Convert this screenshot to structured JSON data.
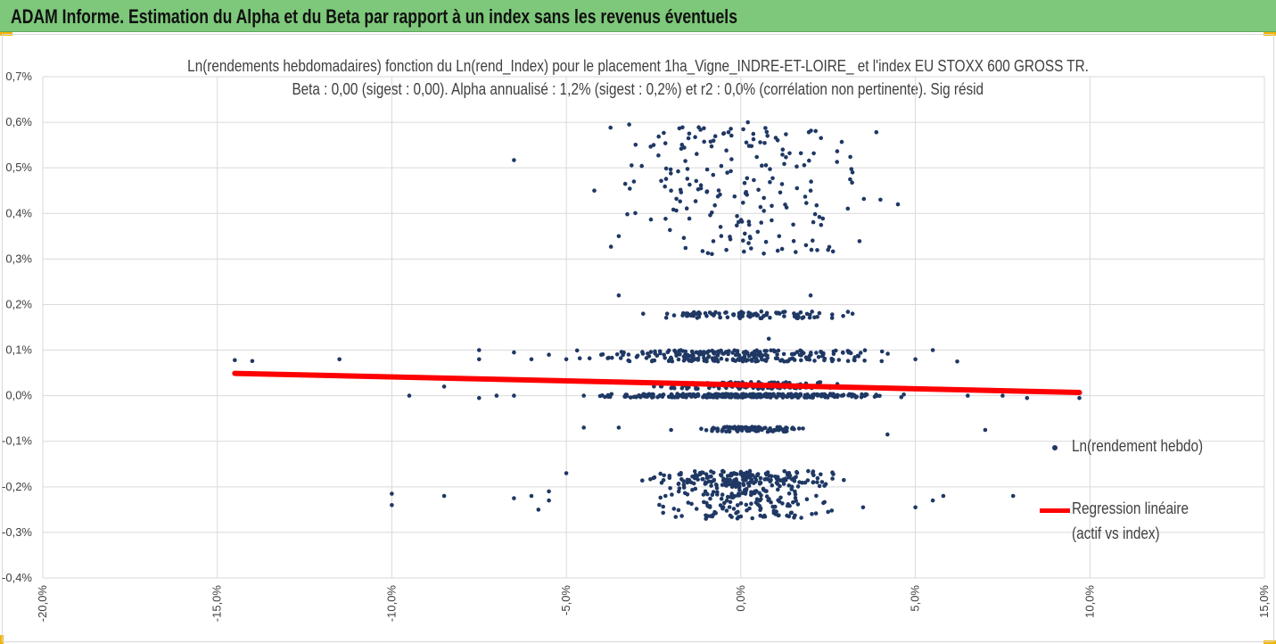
{
  "banner": {
    "title": "ADAM Informe. Estimation du Alpha et du Beta par rapport à un index sans les revenus éventuels",
    "background": "#7dc87a",
    "accent": "#f2b400"
  },
  "chart_data": {
    "type": "scatter",
    "title": "Ln(rendements hebdomadaires) fonction du Ln(rend_Index) pour le placement 1ha_Vigne_INDRE-ET-LOIRE_ et l'index EU STOXX 600 GROSS TR.",
    "subtitle": "Beta : 0,00 (sigest : 0,00). Alpha annualisé : 1,2% (sigest : 0,2%) et r2 : 0,0% (corrélation non pertinente). Sig résid",
    "xlabel": "",
    "ylabel": "",
    "xlim": [
      -20,
      15
    ],
    "ylim": [
      -0.4,
      0.7
    ],
    "x_ticks": [
      "-20,0%",
      "-15,0%",
      "-10,0%",
      "-5,0%",
      "0,0%",
      "5,0%",
      "10,0%",
      "15,0%"
    ],
    "y_ticks": [
      "0,7%",
      "0,6%",
      "0,5%",
      "0,4%",
      "0,3%",
      "0,2%",
      "0,1%",
      "0,0%",
      "-0,1%",
      "-0,2%",
      "-0,3%",
      "-0,4%"
    ],
    "grid": true,
    "legend_position": "right",
    "series": [
      {
        "name": "Ln(rendement hebdo)",
        "color": "#1f3864",
        "points": [
          [
            -14.5,
            0.078
          ],
          [
            -14.0,
            0.076
          ],
          [
            -11.5,
            0.08
          ],
          [
            -10.0,
            -0.215
          ],
          [
            -10.0,
            -0.24
          ],
          [
            -9.5,
            0.0
          ],
          [
            -8.5,
            0.02
          ],
          [
            -8.5,
            -0.22
          ],
          [
            -7.5,
            0.08
          ],
          [
            -7.5,
            0.1
          ],
          [
            -7.5,
            -0.005
          ],
          [
            -7.0,
            0.0
          ],
          [
            -6.5,
            0.517
          ],
          [
            -6.5,
            0.095
          ],
          [
            -6.5,
            0.0
          ],
          [
            -6.5,
            -0.225
          ],
          [
            -6.0,
            0.08
          ],
          [
            -6.0,
            -0.22
          ],
          [
            -5.8,
            -0.25
          ],
          [
            -5.5,
            -0.21
          ],
          [
            -5.5,
            -0.23
          ],
          [
            -5.5,
            0.09
          ],
          [
            -5.0,
            0.08
          ],
          [
            -5.0,
            -0.17
          ],
          [
            -4.5,
            0.0
          ],
          [
            -4.5,
            -0.07
          ],
          [
            -4.2,
            0.45
          ],
          [
            -4.0,
            0.09
          ],
          [
            -3.5,
            0.22
          ],
          [
            -3.5,
            0.35
          ],
          [
            -3.2,
            0.595
          ],
          [
            -2.8,
            0.18
          ],
          [
            -2.5,
            0.55
          ],
          [
            -1.5,
            0.565
          ],
          [
            -0.5,
            0.575
          ],
          [
            0.2,
            0.6
          ],
          [
            1.2,
            0.54
          ],
          [
            2.0,
            0.22
          ],
          [
            2.5,
            0.32
          ],
          [
            3.2,
            0.49
          ],
          [
            3.2,
            0.18
          ],
          [
            4.0,
            0.43
          ],
          [
            4.5,
            0.42
          ],
          [
            4.2,
            -0.085
          ],
          [
            5.0,
            0.08
          ],
          [
            5.5,
            0.1
          ],
          [
            5.5,
            -0.23
          ],
          [
            5.0,
            -0.245
          ],
          [
            5.8,
            -0.22
          ],
          [
            6.2,
            0.075
          ],
          [
            6.5,
            0.0
          ],
          [
            7.0,
            -0.075
          ],
          [
            7.5,
            0.0
          ],
          [
            7.8,
            -0.22
          ],
          [
            8.2,
            -0.005
          ],
          [
            9.7,
            -0.005
          ],
          [
            -1.0,
            -0.27
          ],
          [
            0.0,
            -0.265
          ],
          [
            1.0,
            -0.26
          ],
          [
            2.5,
            -0.255
          ],
          [
            3.5,
            -0.245
          ],
          [
            -3.5,
            -0.07
          ],
          [
            -2.0,
            -0.075
          ],
          [
            0.8,
            0.125
          ],
          [
            -2.0,
            0.45
          ],
          [
            2.0,
            0.45
          ]
        ],
        "clusters": [
          {
            "x_min": -4.0,
            "x_max": 4.0,
            "y_min": 0.31,
            "y_max": 0.59,
            "count": 190,
            "seed": 11
          },
          {
            "x_min": -2.5,
            "x_max": 3.2,
            "y_min": 0.17,
            "y_max": 0.185,
            "count": 95,
            "seed": 23
          },
          {
            "x_min": -5.0,
            "x_max": 4.5,
            "y_min": 0.075,
            "y_max": 0.1,
            "count": 240,
            "seed": 37
          },
          {
            "x_min": -3.0,
            "x_max": 3.5,
            "y_min": 0.015,
            "y_max": 0.03,
            "count": 120,
            "seed": 41
          },
          {
            "x_min": -4.5,
            "x_max": 5.0,
            "y_min": -0.004,
            "y_max": 0.004,
            "count": 340,
            "seed": 53
          },
          {
            "x_min": -1.5,
            "x_max": 2.0,
            "y_min": -0.08,
            "y_max": -0.068,
            "count": 90,
            "seed": 61
          },
          {
            "x_min": -3.0,
            "x_max": 3.0,
            "y_min": -0.2,
            "y_max": -0.165,
            "count": 200,
            "seed": 73
          },
          {
            "x_min": -3.0,
            "x_max": 3.2,
            "y_min": -0.27,
            "y_max": -0.2,
            "count": 150,
            "seed": 89
          }
        ]
      },
      {
        "name": "Regression linéaire",
        "name_line2": "(actif vs index)",
        "color": "#ff0000",
        "line": [
          [
            -14.5,
            0.049
          ],
          [
            9.7,
            0.007
          ]
        ]
      }
    ]
  }
}
